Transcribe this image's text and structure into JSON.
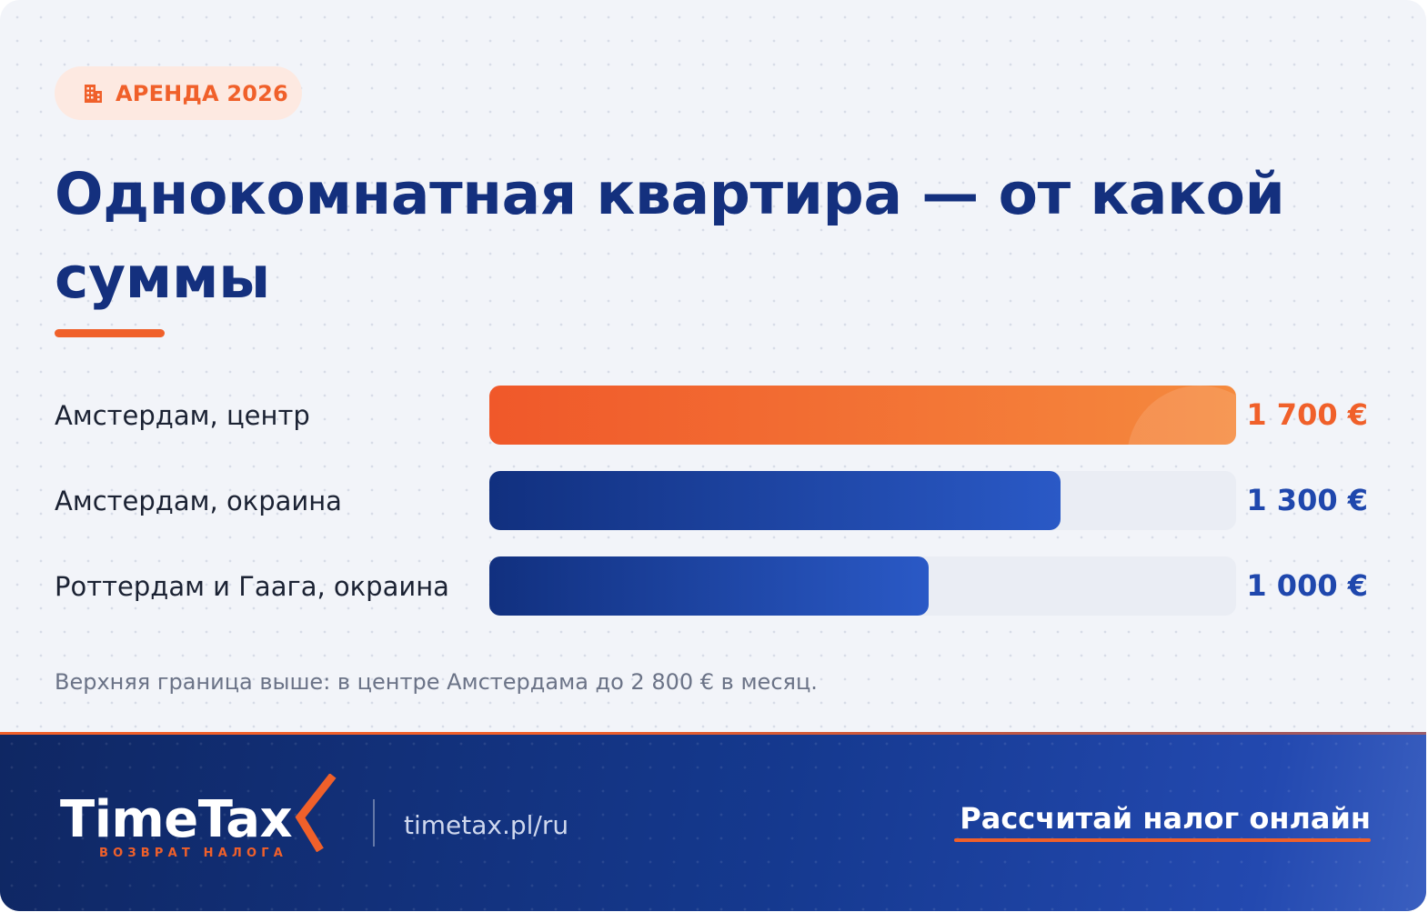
{
  "badge": {
    "label": "АРЕНДА 2026",
    "icon": "building-icon"
  },
  "title": "Однокомнатная квартира — от какой суммы",
  "chart_data": {
    "type": "bar",
    "orientation": "horizontal",
    "categories": [
      "Амстердам, центр",
      "Амстердам, окраина",
      "Роттердам и Гаага, окраина"
    ],
    "values": [
      1700,
      1300,
      1000
    ],
    "value_labels": [
      "1 700 €",
      "1 300 €",
      "1 000 €"
    ],
    "unit": "€",
    "xlim": [
      0,
      1700
    ],
    "highlight_index": 0,
    "colors": {
      "highlight": "#f0602a",
      "default": "#1f47ad",
      "track": "#eaedf4"
    },
    "grid": false
  },
  "note": "Верхняя граница выше: в центре Амстердама до 2 800 € в месяц.",
  "footer": {
    "logo": "TimeTax",
    "logo_sub": "ВОЗВРАТ НАЛОГА",
    "site": "timetax.pl/ru",
    "cta": "Рассчитай налог онлайн"
  },
  "colors": {
    "accent": "#f0602a",
    "brand": "#14307e",
    "footer": "#112a6e"
  }
}
